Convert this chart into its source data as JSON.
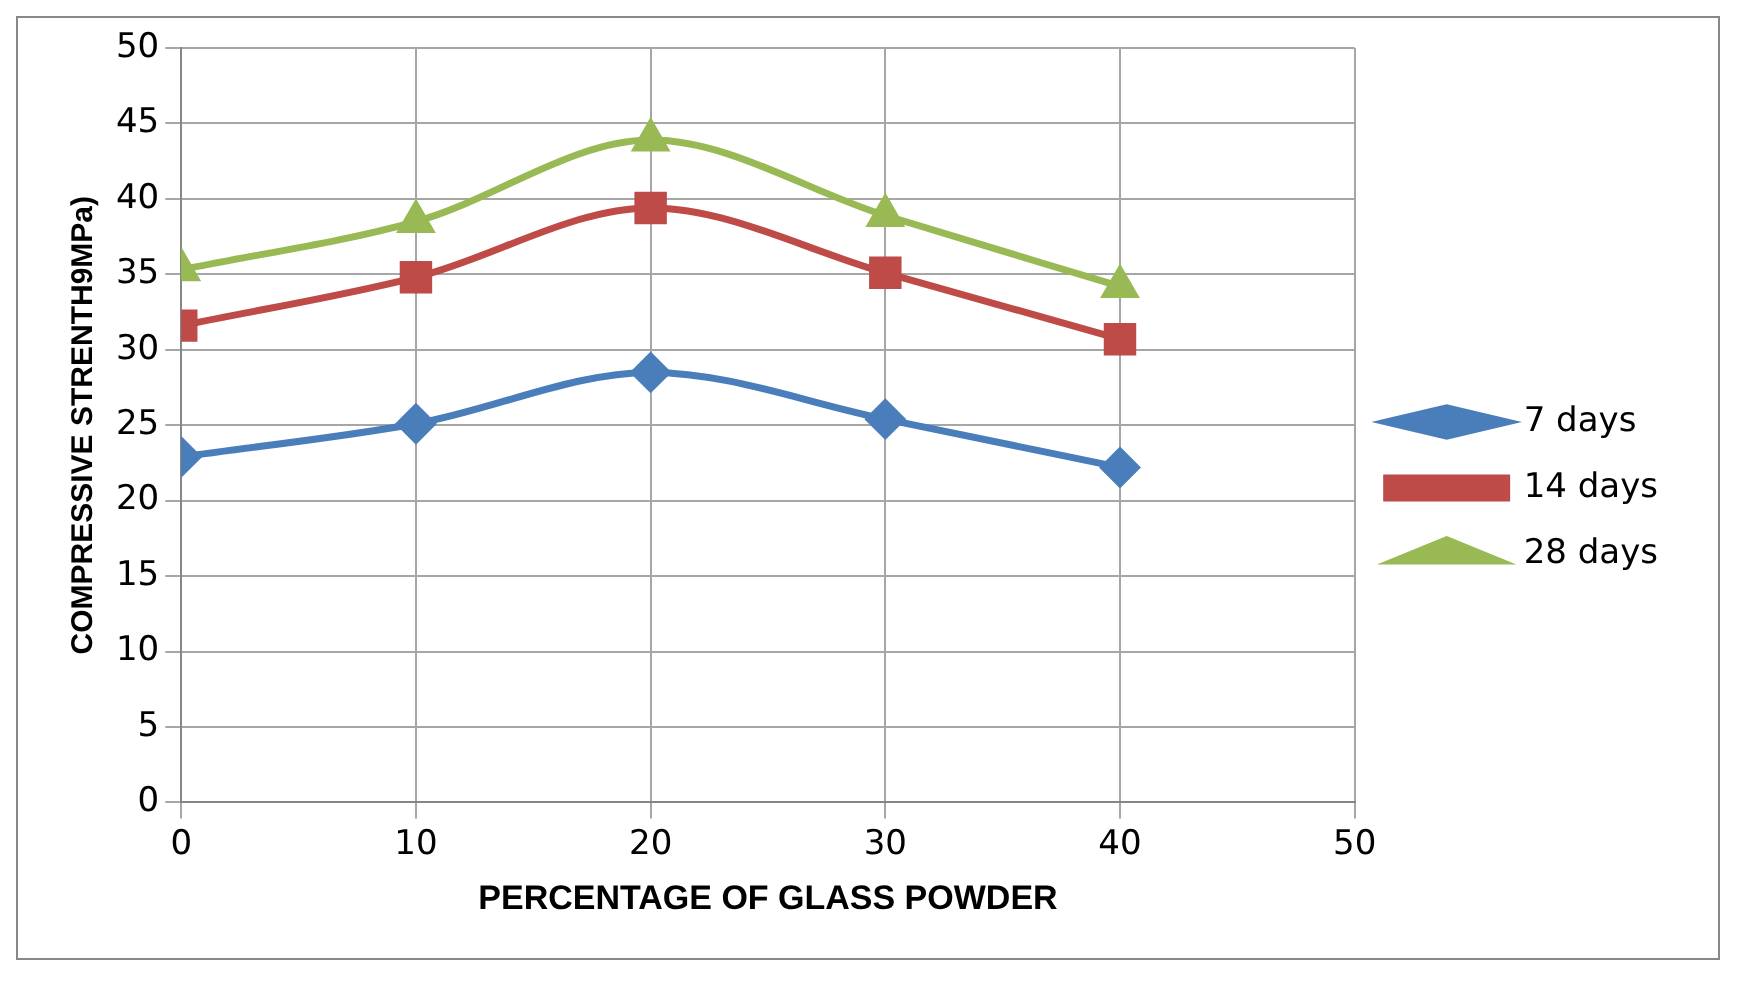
{
  "chart_data": {
    "type": "line",
    "xlabel": "PERCENTAGE OF GLASS POWDER",
    "ylabel": "COMPRESSIVE STRENTH9MPa)",
    "x": [
      0,
      10,
      20,
      30,
      40
    ],
    "series": [
      {
        "name": "7 days",
        "color": "#4a7ebb",
        "marker": "diamond",
        "values": [
          22.9,
          25.1,
          28.5,
          25.4,
          22.2
        ]
      },
      {
        "name": "14 days",
        "color": "#be4b48",
        "marker": "square",
        "values": [
          31.6,
          34.8,
          39.4,
          35.1,
          30.7
        ]
      },
      {
        "name": "28 days",
        "color": "#98b954",
        "marker": "triangle",
        "values": [
          35.3,
          38.5,
          43.9,
          38.9,
          34.2
        ]
      }
    ],
    "xlim": [
      0,
      50
    ],
    "xticks": [
      0,
      10,
      20,
      30,
      40,
      50
    ],
    "ylim": [
      0,
      50
    ],
    "yticks": [
      0,
      5,
      10,
      15,
      20,
      25,
      30,
      35,
      40,
      45,
      50
    ],
    "grid": true,
    "legend": "right",
    "line_style": "solid"
  }
}
